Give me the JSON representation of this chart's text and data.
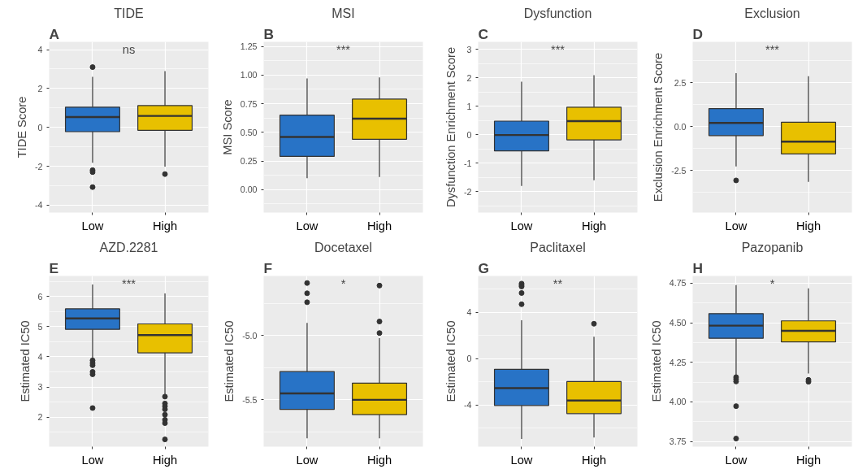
{
  "chart_data": [
    {
      "type": "box",
      "title": "TIDE",
      "ylabel": "TIDE Score",
      "categories": [
        "Low",
        "High"
      ],
      "colors": [
        "#2873c6",
        "#e8c000"
      ],
      "annotations": [
        "A",
        "ns"
      ],
      "ylim": [
        -4.38,
        4.4
      ],
      "yticks": [
        -4,
        -2,
        0,
        2,
        4
      ],
      "grid": true,
      "boxes": [
        {
          "low": -1.82,
          "q1": -0.22,
          "median": 0.53,
          "q3": 1.04,
          "high": 2.6,
          "outliers": [
            3.1,
            -2.2,
            -2.3,
            -3.07
          ]
        },
        {
          "low": -2.02,
          "q1": -0.15,
          "median": 0.59,
          "q3": 1.12,
          "high": 2.9,
          "outliers": [
            -2.4
          ]
        }
      ]
    },
    {
      "type": "box",
      "title": "MSI",
      "ylabel": "MSI Score",
      "categories": [
        "Low",
        "High"
      ],
      "colors": [
        "#2873c6",
        "#e8c000"
      ],
      "annotations": [
        "B",
        "***"
      ],
      "ylim": [
        -0.2,
        1.29
      ],
      "yticks": [
        {
          "value": 0,
          "label": "0.00"
        },
        {
          "value": 0.25,
          "label": "0.25"
        },
        {
          "value": 0.5,
          "label": "0.50"
        },
        {
          "value": 0.75,
          "label": "0.75"
        },
        {
          "value": 1,
          "label": "1.00"
        },
        {
          "value": 1.25,
          "label": "1.25"
        }
      ],
      "grid": true,
      "boxes": [
        {
          "low": 0.1,
          "q1": 0.29,
          "median": 0.46,
          "q3": 0.65,
          "high": 0.97
        },
        {
          "low": 0.11,
          "q1": 0.44,
          "median": 0.62,
          "q3": 0.79,
          "high": 0.98
        }
      ]
    },
    {
      "type": "box",
      "title": "Dysfunction",
      "ylabel": "Dysfunction Enrichment Score",
      "categories": [
        "Low",
        "High"
      ],
      "colors": [
        "#2873c6",
        "#e8c000"
      ],
      "annotations": [
        "C",
        "***"
      ],
      "ylim": [
        -2.74,
        3.27
      ],
      "yticks": [
        -2,
        -1,
        0,
        1,
        2,
        3
      ],
      "grid": true,
      "boxes": [
        {
          "low": -1.8,
          "q1": -0.57,
          "median": -0.01,
          "q3": 0.48,
          "high": 1.87
        },
        {
          "low": -1.6,
          "q1": -0.18,
          "median": 0.48,
          "q3": 0.97,
          "high": 2.1
        }
      ]
    },
    {
      "type": "box",
      "title": "Exclusion",
      "ylabel": "Exclusion Enrichment Score",
      "categories": [
        "Low",
        "High"
      ],
      "colors": [
        "#2873c6",
        "#e8c000"
      ],
      "annotations": [
        "D",
        "***"
      ],
      "ylim": [
        -4.9,
        4.82
      ],
      "yticks": [
        -2.5,
        {
          "value": 0,
          "label": "0.0"
        },
        2.5
      ],
      "grid": true,
      "boxes": [
        {
          "low": -2.27,
          "q1": -0.52,
          "median": 0.2,
          "q3": 1.02,
          "high": 3.04,
          "outliers": [
            -3.07
          ]
        },
        {
          "low": -3.15,
          "q1": -1.56,
          "median": -0.86,
          "q3": 0.24,
          "high": 2.87
        }
      ]
    },
    {
      "type": "box",
      "title": "AZD.2281",
      "ylabel": "Estimated IC50",
      "categories": [
        "Low",
        "High"
      ],
      "colors": [
        "#2873c6",
        "#e8c000"
      ],
      "annotations": [
        "E",
        "***"
      ],
      "ylim": [
        1.02,
        6.68
      ],
      "yticks": [
        2,
        3,
        4,
        5,
        6
      ],
      "grid": true,
      "boxes": [
        {
          "low": 3.95,
          "q1": 4.91,
          "median": 5.27,
          "q3": 5.59,
          "high": 6.4,
          "outliers": [
            3.88,
            3.79,
            3.72,
            3.5,
            3.42,
            2.3
          ]
        },
        {
          "low": 2.75,
          "q1": 4.13,
          "median": 4.72,
          "q3": 5.09,
          "high": 6.1,
          "outliers": [
            2.68,
            2.45,
            2.36,
            2.26,
            2.08,
            1.91,
            1.8,
            1.26
          ]
        }
      ]
    },
    {
      "type": "box",
      "title": "Docetaxel",
      "ylabel": "Estimated IC50",
      "categories": [
        "Low",
        "High"
      ],
      "colors": [
        "#2873c6",
        "#e8c000"
      ],
      "annotations": [
        "F",
        "*"
      ],
      "ylim": [
        -5.865,
        -4.535
      ],
      "yticks": [
        {
          "value": -5.5,
          "label": "-5.5"
        },
        {
          "value": -5,
          "label": "-5.0"
        }
      ],
      "grid": true,
      "boxes": [
        {
          "low": -5.8,
          "q1": -5.575,
          "median": -5.45,
          "q3": -5.28,
          "high": -4.9,
          "outliers": [
            -4.59,
            -4.67,
            -4.74
          ]
        },
        {
          "low": -5.8,
          "q1": -5.615,
          "median": -5.5,
          "q3": -5.37,
          "high": -5.02,
          "outliers": [
            -4.61,
            -4.89,
            -4.98
          ]
        }
      ]
    },
    {
      "type": "box",
      "title": "Paclitaxel",
      "ylabel": "Estimated IC50",
      "categories": [
        "Low",
        "High"
      ],
      "colors": [
        "#2873c6",
        "#e8c000"
      ],
      "annotations": [
        "G",
        "**"
      ],
      "ylim": [
        -7.6,
        7.12
      ],
      "yticks": [
        -4,
        0,
        4
      ],
      "grid": true,
      "boxes": [
        {
          "low": -6.94,
          "q1": -4.05,
          "median": -2.55,
          "q3": -0.93,
          "high": 3.3,
          "outliers": [
            6.46,
            6.33,
            6.21,
            5.65,
            4.68
          ]
        },
        {
          "low": -6.82,
          "q1": -4.75,
          "median": -3.62,
          "q3": -1.99,
          "high": 1.88,
          "outliers": [
            3.0
          ]
        }
      ]
    },
    {
      "type": "box",
      "title": "Pazopanib",
      "ylabel": "Estimated IC50",
      "categories": [
        "Low",
        "High"
      ],
      "colors": [
        "#2873c6",
        "#e8c000"
      ],
      "annotations": [
        "H",
        "*"
      ],
      "ylim": [
        3.717,
        4.796
      ],
      "yticks": [
        {
          "value": 3.75,
          "label": "3.75"
        },
        {
          "value": 4,
          "label": "4.00"
        },
        {
          "value": 4.25,
          "label": "4.25"
        },
        {
          "value": 4.5,
          "label": "4.50"
        },
        {
          "value": 4.75,
          "label": "4.75"
        }
      ],
      "grid": true,
      "boxes": [
        {
          "low": 4.164,
          "q1": 4.402,
          "median": 4.482,
          "q3": 4.558,
          "high": 4.738,
          "outliers": [
            4.156,
            4.144,
            4.129,
            3.973,
            3.768
          ]
        },
        {
          "low": 4.18,
          "q1": 4.379,
          "median": 4.449,
          "q3": 4.512,
          "high": 4.718,
          "outliers": [
            4.139,
            4.127
          ]
        }
      ]
    }
  ]
}
